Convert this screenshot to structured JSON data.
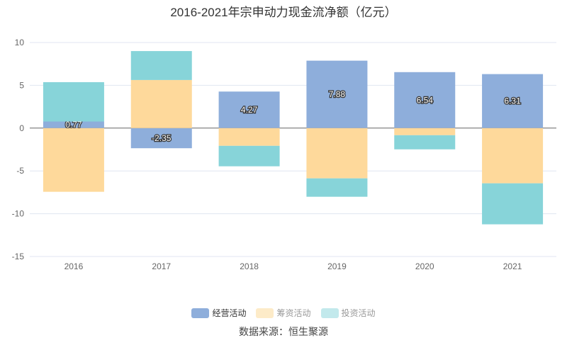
{
  "chart_data": {
    "type": "bar",
    "stacked": true,
    "title": "2016-2021年宗申动力现金流净额（亿元）",
    "categories": [
      "2016",
      "2017",
      "2018",
      "2019",
      "2020",
      "2021"
    ],
    "series": [
      {
        "name": "经营活动",
        "color": "#8eaedb",
        "values": [
          0.77,
          -2.35,
          4.27,
          7.88,
          6.54,
          6.31
        ],
        "labels": [
          "0.77",
          "-2.35",
          "4.27",
          "7.88",
          "6.54",
          "6.31"
        ]
      },
      {
        "name": "筹资活动",
        "color": "#fed99b",
        "values": [
          -7.44,
          5.62,
          -2.07,
          -5.87,
          -0.83,
          -6.45
        ]
      },
      {
        "name": "投资活动",
        "color": "#87d4d9",
        "values": [
          4.6,
          3.38,
          -2.39,
          -2.15,
          -1.65,
          -4.79
        ]
      }
    ],
    "legend_colors": [
      "#8eaedb",
      "#fdebc8",
      "#c2e9ec"
    ],
    "legend_text_colors": [
      "#333333",
      "#999999",
      "#999999"
    ],
    "ylim": [
      -15,
      10
    ],
    "yticks": [
      -15,
      -10,
      -5,
      0,
      5,
      10
    ],
    "grid": true,
    "legend_position": "bottom"
  },
  "source": "数据来源：恒生聚源"
}
